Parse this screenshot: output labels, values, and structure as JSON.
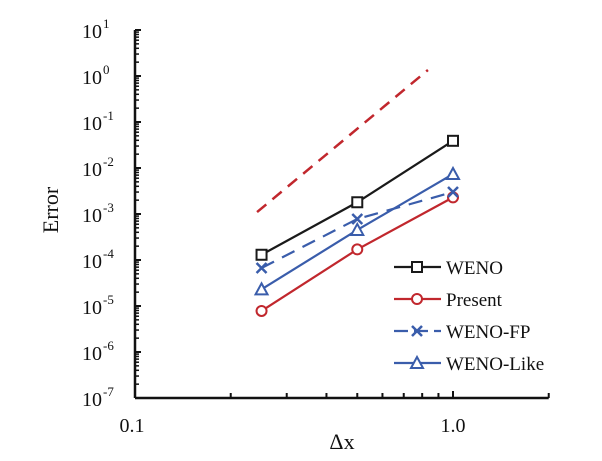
{
  "chart_data": {
    "type": "line",
    "title": "",
    "xlabel": "Δx",
    "ylabel": "Error",
    "xscale": "log",
    "yscale": "log",
    "xlim": [
      0.1,
      2.0
    ],
    "ylim": [
      1e-07,
      10
    ],
    "x_tick_labels": [
      "0.1",
      "1.0"
    ],
    "x_ticks": [
      0.1,
      1.0
    ],
    "y_ticks": [
      1e-07,
      1e-06,
      1e-05,
      0.0001,
      0.001,
      0.01,
      0.1,
      1,
      10
    ],
    "y_tick_labels": [
      {
        "base": "10",
        "exp": "-7"
      },
      {
        "base": "10",
        "exp": "-6"
      },
      {
        "base": "10",
        "exp": "-5"
      },
      {
        "base": "10",
        "exp": "-4"
      },
      {
        "base": "10",
        "exp": "-3"
      },
      {
        "base": "10",
        "exp": "-2"
      },
      {
        "base": "10",
        "exp": "-1"
      },
      {
        "base": "10",
        "exp": "0"
      },
      {
        "base": "10",
        "exp": "1"
      }
    ],
    "grid": false,
    "legend_placement": "bottom-right",
    "series": [
      {
        "name": "WENO",
        "color": "#1a1a1a",
        "marker": "square",
        "dash": false,
        "x": [
          0.25,
          0.5,
          1.0
        ],
        "y": [
          0.00013,
          0.0018,
          0.039
        ]
      },
      {
        "name": "Present",
        "color": "#c1272d",
        "marker": "circle",
        "dash": false,
        "x": [
          0.25,
          0.5,
          1.0
        ],
        "y": [
          7.8e-06,
          0.00017,
          0.0023
        ]
      },
      {
        "name": "WENO-FP",
        "color": "#3a5dab",
        "marker": "x",
        "dash": true,
        "x": [
          0.25,
          0.5,
          1.0
        ],
        "y": [
          6.7e-05,
          0.00078,
          0.003
        ]
      },
      {
        "name": "WENO-Like",
        "color": "#3a5dab",
        "marker": "triangle",
        "dash": false,
        "x": [
          0.25,
          0.5,
          1.0
        ],
        "y": [
          2.3e-05,
          0.00045,
          0.0074
        ]
      }
    ],
    "reference_line": {
      "color": "#c1272d",
      "dash": true,
      "x": [
        0.242,
        0.834
      ],
      "y": [
        0.0011,
        1.35
      ]
    }
  }
}
